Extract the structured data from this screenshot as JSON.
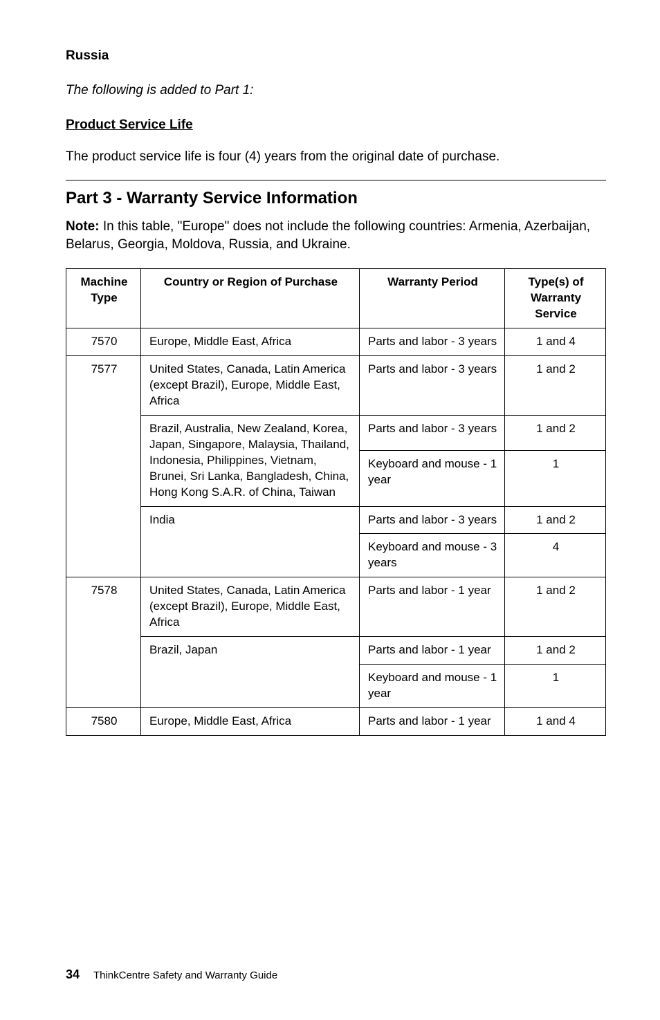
{
  "russia_heading": "Russia",
  "added_to_part1": "The following is added to Part 1:",
  "product_service_life_heading": "Product Service Life",
  "product_service_life_text": "The product service life is four (4) years from the original date of purchase.",
  "part3_heading": "Part 3 - Warranty Service Information",
  "note_label": "Note:",
  "note_text": " In this table, \"Europe\" does not include the following countries: Armenia, Azerbaijan, Belarus, Georgia, Moldova, Russia, and Ukraine.",
  "headers": {
    "machine_type": "Machine Type",
    "country": "Country or Region of Purchase",
    "period": "Warranty Period",
    "service": "Type(s) of Warranty Service"
  },
  "rows": [
    {
      "mt": "7570",
      "country": "Europe, Middle East, Africa",
      "period": "Parts and labor - 3 years",
      "service": "1 and 4"
    },
    {
      "mt": "7577",
      "country": "United States, Canada, Latin America (except Brazil), Europe, Middle East, Africa",
      "period": "Parts and labor - 3 years",
      "service": "1 and 2"
    },
    {
      "country": "Brazil, Australia, New Zealand, Korea, Japan, Singapore, Malaysia, Thailand, Indonesia, Philippines, Vietnam, Brunei, Sri Lanka, Bangladesh, China, Hong Kong S.A.R. of China, Taiwan",
      "period": "Parts and labor - 3 years",
      "service": "1 and 2"
    },
    {
      "period": "Keyboard and mouse - 1 year",
      "service": "1"
    },
    {
      "country": "India",
      "period": "Parts and labor - 3 years",
      "service": "1 and 2"
    },
    {
      "period": "Keyboard and mouse - 3 years",
      "service": "4"
    },
    {
      "mt": "7578",
      "country": "United States, Canada, Latin America (except Brazil), Europe, Middle East, Africa",
      "period": "Parts and labor - 1 year",
      "service": "1 and 2"
    },
    {
      "country": "Brazil, Japan",
      "period": "Parts and labor - 1 year",
      "service": "1 and 2"
    },
    {
      "period": "Keyboard and mouse - 1 year",
      "service": "1"
    },
    {
      "mt": "7580",
      "country": "Europe, Middle East, Africa",
      "period": "Parts and labor - 1 year",
      "service": "1 and 4"
    }
  ],
  "footer_page": "34",
  "footer_title": "ThinkCentre Safety and Warranty Guide"
}
